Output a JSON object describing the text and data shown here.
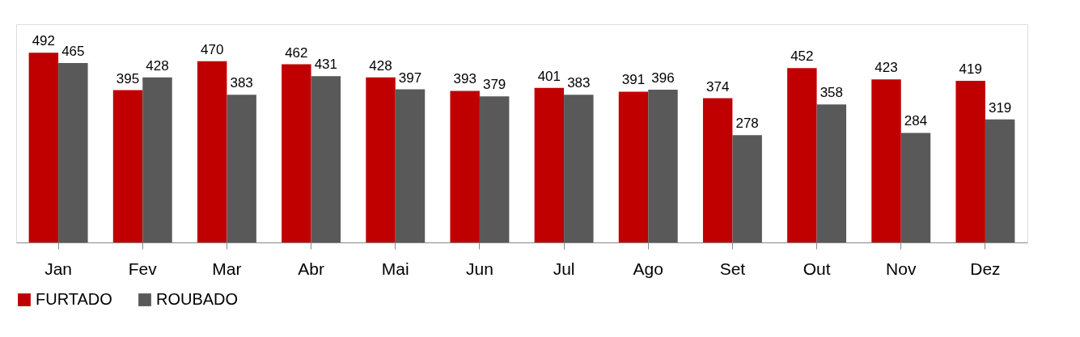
{
  "chart_data": {
    "type": "bar",
    "categories": [
      "Jan",
      "Fev",
      "Mar",
      "Abr",
      "Mai",
      "Jun",
      "Jul",
      "Ago",
      "Set",
      "Out",
      "Nov",
      "Dez"
    ],
    "series": [
      {
        "name": "FURTADO",
        "color": "#c00000",
        "values": [
          492,
          395,
          470,
          462,
          428,
          393,
          401,
          391,
          374,
          452,
          423,
          419
        ]
      },
      {
        "name": "ROUBADO",
        "color": "#595959",
        "values": [
          465,
          428,
          383,
          431,
          397,
          379,
          383,
          396,
          278,
          358,
          284,
          319
        ]
      }
    ],
    "data_labels": true,
    "legend": "bottom",
    "grid": false
  }
}
